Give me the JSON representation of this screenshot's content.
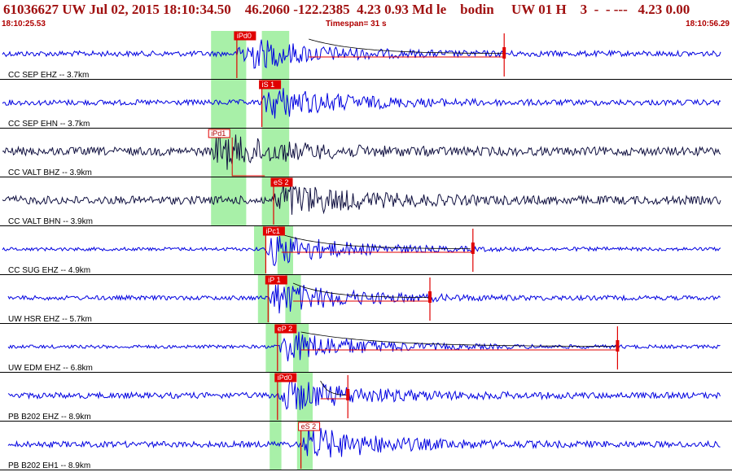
{
  "header": {
    "title": "61036627 UW Jul 02, 2015 18:10:34.50    46.2060 -122.2385  4.23 0.93 Md le    bodin     UW 01 H    3  -  - ---   4.23 0.00",
    "start_time": "18:10:25.53",
    "timespan": "Timespan=  31 s",
    "end_time": "18:10:56.29"
  },
  "colors": {
    "trace_blue": "#0000e0",
    "trace_dark": "#101040",
    "pick_red": "#e00000",
    "window_green": "#a8f0a8",
    "header_red": "#a01010"
  },
  "traces": [
    {
      "label": "CC SEP EHZ -- 3.7km",
      "color": "blue",
      "amp": 0.55,
      "pick": {
        "text": "iPd0",
        "time": 3.03,
        "filled": true,
        "stem": "down"
      },
      "green": [
        [
          2.7,
          3.15
        ],
        [
          3.35,
          3.7
        ]
      ],
      "coda": {
        "start": 3.95,
        "end": 6.45,
        "mark": 6.45
      }
    },
    {
      "label": "CC SEP EHN -- 3.7km",
      "color": "blue",
      "amp": 0.55,
      "pick": {
        "text": "iS 1",
        "time": 3.35,
        "filled": true,
        "stem": "down"
      },
      "green": [
        [
          2.7,
          3.15
        ],
        [
          3.35,
          3.7
        ]
      ]
    },
    {
      "label": "CC VALT BHZ -- 3.9km",
      "color": "dark",
      "amp": 0.85,
      "pick": {
        "text": "iPd1",
        "time": 2.7,
        "filled": false,
        "stem": "box"
      },
      "green": [
        [
          2.7,
          3.15
        ],
        [
          3.35,
          3.7
        ]
      ]
    },
    {
      "label": "CC VALT BHN -- 3.9km",
      "color": "dark",
      "amp": 0.85,
      "pick": {
        "text": "eS 2",
        "time": 3.5,
        "filled": true,
        "stem": "down"
      },
      "green": [
        [
          2.7,
          3.15
        ],
        [
          3.35,
          3.7
        ]
      ]
    },
    {
      "label": "CC SUG EHZ -- 4.9km",
      "color": "blue",
      "amp": 0.35,
      "pick": {
        "text": "iPc1",
        "time": 3.4,
        "filled": true,
        "stem": "down"
      },
      "green": [
        [
          3.25,
          3.4
        ],
        [
          3.55,
          3.75
        ]
      ],
      "coda": {
        "start": 3.6,
        "end": 6.05,
        "mark": 6.05
      }
    },
    {
      "label": "UW HSR EHZ -- 5.7km",
      "color": "blue",
      "amp": 0.45,
      "pick": {
        "text": "iP 1",
        "time": 3.43,
        "filled": true,
        "stem": "down"
      },
      "green": [
        [
          3.3,
          3.45
        ],
        [
          3.65,
          3.85
        ]
      ],
      "coda": {
        "start": 3.75,
        "end": 5.5,
        "mark": 5.5
      }
    },
    {
      "label": "UW EDM EHZ -- 6.8km",
      "color": "blue",
      "amp": 0.35,
      "pick": {
        "text": "eP 2",
        "time": 3.55,
        "filled": true,
        "stem": "down"
      },
      "green": [
        [
          3.4,
          3.6
        ],
        [
          3.75,
          3.95
        ]
      ],
      "coda": {
        "start": 3.85,
        "end": 7.9,
        "mark": 7.9
      }
    },
    {
      "label": "PB B202 EHZ -- 8.9km",
      "color": "blue",
      "amp": 0.6,
      "pick": {
        "text": "iPd0",
        "time": 3.55,
        "filled": true,
        "stem": "down"
      },
      "green": [
        [
          3.45,
          3.6
        ],
        [
          3.8,
          4.0
        ]
      ],
      "coda": {
        "start": 4.1,
        "end": 4.45,
        "mark": 4.45
      }
    },
    {
      "label": "PB B202 EH1 -- 8.9km",
      "color": "blue",
      "amp": 0.6,
      "pick": {
        "text": "eS 2",
        "time": 3.85,
        "filled": false,
        "stem": "down"
      },
      "green": [
        [
          3.45,
          3.6
        ],
        [
          3.8,
          4.0
        ]
      ]
    }
  ]
}
